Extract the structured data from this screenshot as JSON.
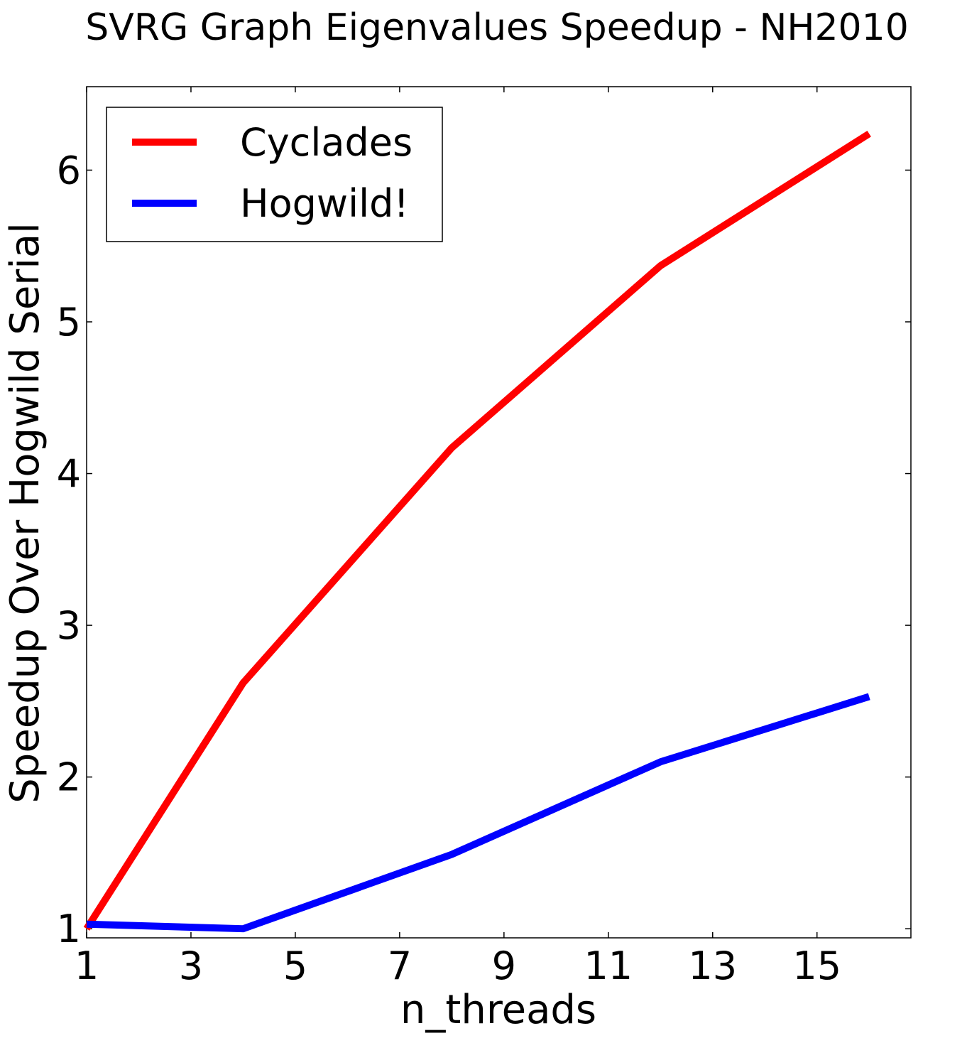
{
  "chart_data": {
    "type": "line",
    "title": "SVRG Graph Eigenvalues Speedup - NH2010",
    "xlabel": "n_threads",
    "ylabel": "Speedup Over Hogwild Serial",
    "x": [
      1,
      4,
      8,
      12,
      16
    ],
    "series": [
      {
        "name": "Cyclades",
        "color": "#ff0000",
        "values": [
          1.0,
          2.62,
          4.17,
          5.37,
          6.24
        ]
      },
      {
        "name": "Hogwild!",
        "color": "#0000ff",
        "values": [
          1.03,
          1.0,
          1.49,
          2.1,
          2.53
        ]
      }
    ],
    "xlim": [
      1,
      16.8
    ],
    "ylim": [
      0.94,
      6.55
    ],
    "xticks": [
      1,
      3,
      5,
      7,
      9,
      11,
      13,
      15
    ],
    "yticks": [
      1,
      2,
      3,
      4,
      5,
      6
    ],
    "grid": false,
    "legend_position": "top-left"
  }
}
